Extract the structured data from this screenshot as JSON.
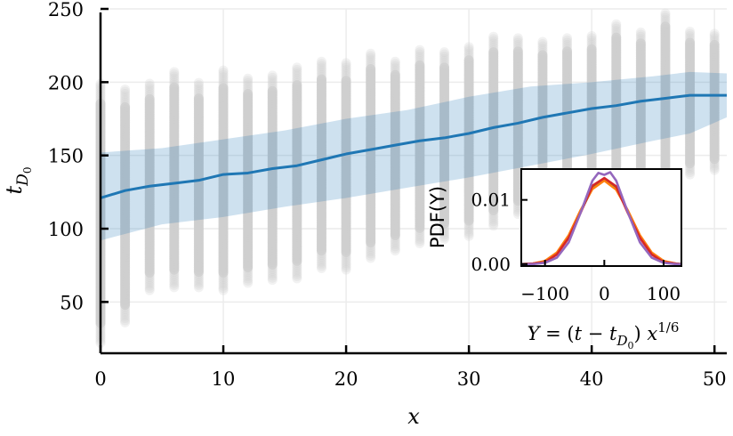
{
  "chart_data": [
    {
      "type": "scatter",
      "xlabel": "x",
      "ylabel": "t_{D_0}",
      "xlim": [
        0,
        51
      ],
      "ylim": [
        15,
        250
      ],
      "x_ticks": [
        "0",
        "10",
        "20",
        "30",
        "40",
        "50"
      ],
      "y_ticks": [
        "50",
        "100",
        "150",
        "200",
        "250"
      ],
      "grid": true,
      "colors": {
        "points": "#cfcfcf",
        "mean": "#1f77b4",
        "band": "#aed0ea"
      },
      "mean_line": {
        "x": [
          0,
          2,
          4,
          6,
          8,
          10,
          12,
          14,
          16,
          18,
          20,
          22,
          24,
          26,
          28,
          30,
          32,
          34,
          36,
          38,
          40,
          42,
          44,
          46,
          48,
          50,
          51
        ],
        "y": [
          121,
          126,
          129,
          131,
          133,
          137,
          138,
          141,
          143,
          147,
          151,
          154,
          157,
          160,
          162,
          165,
          169,
          172,
          176,
          179,
          182,
          184,
          187,
          189,
          191,
          191,
          191
        ]
      },
      "band": {
        "x": [
          0,
          5,
          10,
          15,
          20,
          25,
          30,
          35,
          40,
          45,
          48,
          51
        ],
        "lower": [
          92,
          103,
          108,
          115,
          121,
          128,
          135,
          143,
          151,
          160,
          165,
          176
        ],
        "upper": [
          152,
          155,
          161,
          167,
          175,
          181,
          190,
          197,
          200,
          204,
          207,
          206
        ]
      },
      "scatter_columns": {
        "x": [
          0,
          2,
          4,
          6,
          8,
          10,
          12,
          14,
          16,
          18,
          20,
          22,
          24,
          26,
          28,
          30,
          32,
          34,
          36,
          38,
          40,
          42,
          44,
          46,
          48,
          50
        ],
        "min": [
          22,
          36,
          58,
          60,
          60,
          58,
          63,
          65,
          66,
          73,
          72,
          80,
          85,
          90,
          93,
          95,
          102,
          110,
          112,
          122,
          122,
          127,
          132,
          130,
          137,
          140
        ],
        "max": [
          200,
          196,
          200,
          208,
          200,
          208,
          203,
          205,
          210,
          214,
          213,
          220,
          215,
          222,
          221,
          225,
          231,
          230,
          228,
          230,
          232,
          240,
          235,
          248,
          235,
          233
        ]
      }
    },
    {
      "type": "line",
      "xlabel": "Y = (t − t_{D_0}) x^{1/6}",
      "ylabel": "PDF(Y)",
      "xlim": [
        -140,
        130
      ],
      "ylim": [
        -0.0003,
        0.0148
      ],
      "x_ticks": [
        "−100",
        "0",
        "100"
      ],
      "y_ticks": [
        "0.00",
        "0.01"
      ],
      "series": [
        {
          "color": "#2ca02c",
          "x": [
            -140,
            -120,
            -100,
            -80,
            -60,
            -40,
            -20,
            0,
            20,
            40,
            60,
            80,
            100,
            120,
            130
          ],
          "y": [
            0.0,
            0.0001,
            0.0004,
            0.0016,
            0.0043,
            0.0082,
            0.0118,
            0.0132,
            0.0118,
            0.0082,
            0.0043,
            0.0016,
            0.0004,
            0.0001,
            0.0
          ]
        },
        {
          "color": "#ff7f0e",
          "x": [
            -140,
            -120,
            -100,
            -80,
            -60,
            -40,
            -20,
            0,
            20,
            40,
            60,
            80,
            100,
            120,
            130
          ],
          "y": [
            0.0,
            0.0001,
            0.0005,
            0.0018,
            0.0045,
            0.0084,
            0.0117,
            0.013,
            0.0116,
            0.0083,
            0.0045,
            0.0018,
            0.0005,
            0.0001,
            0.0
          ]
        },
        {
          "color": "#d62728",
          "x": [
            -140,
            -120,
            -100,
            -80,
            -60,
            -40,
            -20,
            0,
            20,
            40,
            60,
            80,
            100,
            120,
            130
          ],
          "y": [
            0.0,
            0.0001,
            0.0003,
            0.0015,
            0.0041,
            0.008,
            0.0122,
            0.0134,
            0.0121,
            0.0079,
            0.0041,
            0.0015,
            0.0003,
            0.0001,
            0.0
          ]
        },
        {
          "color": "#9467bd",
          "x": [
            -140,
            -120,
            -100,
            -80,
            -60,
            -40,
            -20,
            -10,
            0,
            10,
            20,
            40,
            60,
            80,
            100,
            120,
            130
          ],
          "y": [
            0.0,
            0.0,
            0.0002,
            0.001,
            0.0034,
            0.008,
            0.013,
            0.0142,
            0.0139,
            0.0143,
            0.013,
            0.008,
            0.0034,
            0.001,
            0.0002,
            0.0,
            0.0
          ]
        }
      ]
    }
  ]
}
